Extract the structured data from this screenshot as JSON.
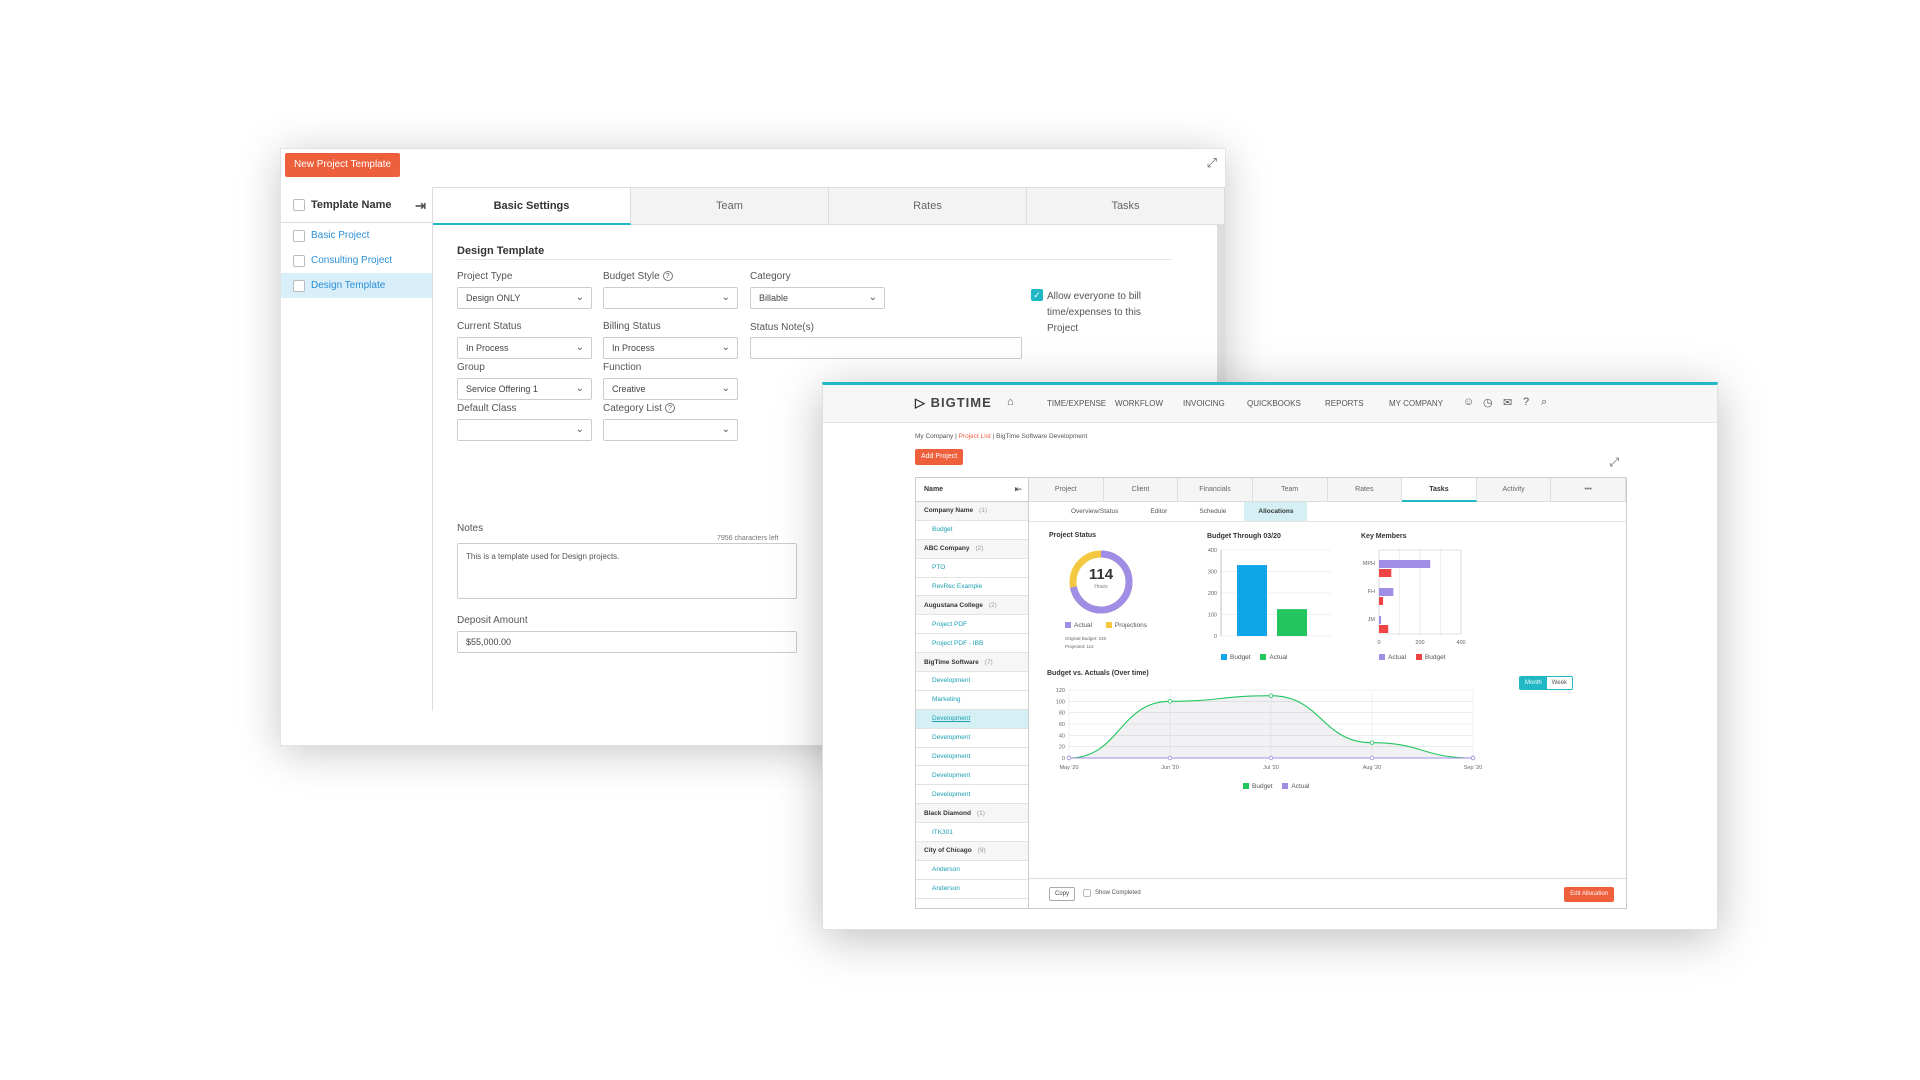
{
  "template_window": {
    "new_button": "New Project Template",
    "list_header": "Template Name",
    "templates": [
      "Basic Project",
      "Consulting Project",
      "Design Template"
    ],
    "selected_template": "Design Template",
    "tabs": [
      "Basic Settings",
      "Team",
      "Rates",
      "Tasks"
    ],
    "active_tab": "Basic Settings",
    "section_title": "Design Template",
    "fields": {
      "project_type": {
        "label": "Project Type",
        "value": "Design ONLY"
      },
      "budget_style": {
        "label": "Budget Style",
        "value": ""
      },
      "category": {
        "label": "Category",
        "value": "Billable"
      },
      "allow_bill": {
        "label": "Allow everyone to bill time/expenses to this Project",
        "checked": true
      },
      "current_status": {
        "label": "Current Status",
        "value": "In Process"
      },
      "billing_status": {
        "label": "Billing Status",
        "value": "In Process"
      },
      "status_notes": {
        "label": "Status Note(s)",
        "value": ""
      },
      "group": {
        "label": "Group",
        "value": "Service Offering 1"
      },
      "function": {
        "label": "Function",
        "value": "Creative"
      },
      "default_class": {
        "label": "Default Class",
        "value": ""
      },
      "category_list": {
        "label": "Category List",
        "value": ""
      },
      "notes": {
        "label": "Notes",
        "value": "This is a template used for Design projects.",
        "chars_left": "7956 characters left"
      },
      "deposit_amount": {
        "label": "Deposit Amount",
        "value": "$55,000.00"
      }
    }
  },
  "bigtime_window": {
    "logo": "BIGTIME",
    "nav": [
      "TIME/EXPENSE",
      "WORKFLOW",
      "INVOICING",
      "QUICKBOOKS",
      "REPORTS",
      "MY COMPANY"
    ],
    "breadcrumb": {
      "home": "My Company",
      "sep": "|",
      "list": "Project List",
      "current": "BigTime Software Development"
    },
    "add_project": "Add Project",
    "list_header": "Name",
    "project_groups": [
      {
        "name": "Company Name",
        "count": "(1)",
        "items": [
          "Budget"
        ]
      },
      {
        "name": "ABC Company",
        "count": "(2)",
        "items": [
          "PTO",
          "RevRec Example"
        ]
      },
      {
        "name": "Augustana College",
        "count": "(2)",
        "items": [
          "Project PDF",
          "Project PDF - IBB"
        ]
      },
      {
        "name": "BigTime Software",
        "count": "(7)",
        "items": [
          "Development",
          "Marketing",
          "Development",
          "Development",
          "Development",
          "Development",
          "Development"
        ]
      },
      {
        "name": "Black Diamond",
        "count": "(1)",
        "items": [
          "ITK301"
        ]
      },
      {
        "name": "City of Chicago",
        "count": "(9)",
        "items": [
          "Anderson",
          "Anderson"
        ]
      }
    ],
    "tabs": [
      "Project",
      "Client",
      "Financials",
      "Team",
      "Rates",
      "Tasks",
      "Activity",
      "•••"
    ],
    "active_tab": "Tasks",
    "subtabs": [
      "Overview/Status",
      "Editor",
      "Schedule",
      "Allocations"
    ],
    "active_subtab": "Allocations",
    "project_status": {
      "title": "Project Status",
      "value": "114",
      "unit": "Hours",
      "legend": [
        "Actual",
        "Projections"
      ],
      "original_budget": "Original Budget: 248",
      "projected": "Projected: 114",
      "actual_fraction": 0.72,
      "colors": {
        "actual": "#a08ee6",
        "projections": "#f5c842"
      }
    },
    "budget_through": {
      "title": "Budget Through 03/20",
      "y_ticks": [
        "400",
        "300",
        "200",
        "100",
        "0"
      ],
      "legend": [
        "Budget",
        "Actual"
      ],
      "chart_data": {
        "type": "bar",
        "categories": [
          "Budget",
          "Actual"
        ],
        "values": [
          330,
          125
        ],
        "ylim": [
          0,
          400
        ],
        "colors": [
          "#0ea5e9",
          "#22c55e"
        ]
      }
    },
    "key_members": {
      "title": "Key Members",
      "x_ticks": [
        "0",
        "200",
        "400"
      ],
      "legend": [
        "Actual",
        "Budget"
      ],
      "chart_data": {
        "type": "bar",
        "orientation": "horizontal",
        "categories": [
          "MPH",
          "FH",
          "JM"
        ],
        "series": [
          {
            "name": "Actual",
            "values": [
              250,
              70,
              10
            ],
            "color": "#a08ee6"
          },
          {
            "name": "Budget",
            "values": [
              60,
              20,
              45
            ],
            "color": "#ef4444"
          }
        ],
        "xlim": [
          0,
          400
        ]
      }
    },
    "budget_vs_actuals": {
      "title": "Budget vs. Actuals (Over time)",
      "toggle": [
        "Month",
        "Week"
      ],
      "active_toggle": "Month",
      "legend": [
        "Budget",
        "Actual"
      ],
      "chart_data": {
        "type": "line",
        "x": [
          "May '20",
          "Jun '20",
          "Jul '20",
          "Aug '20",
          "Sep '20"
        ],
        "ylim": [
          0,
          120
        ],
        "y_ticks": [
          120,
          100,
          80,
          60,
          40,
          20,
          0
        ],
        "series": [
          {
            "name": "Budget",
            "values": [
              0,
              100,
              110,
              27,
              0
            ],
            "color": "#22c55e"
          },
          {
            "name": "Actual",
            "values": [
              0,
              0,
              0,
              0,
              0
            ],
            "color": "#a08ee6"
          }
        ]
      }
    },
    "footer": {
      "copy": "Copy",
      "show_completed": "Show Completed",
      "edit_allocation": "Edit Allocation"
    }
  }
}
